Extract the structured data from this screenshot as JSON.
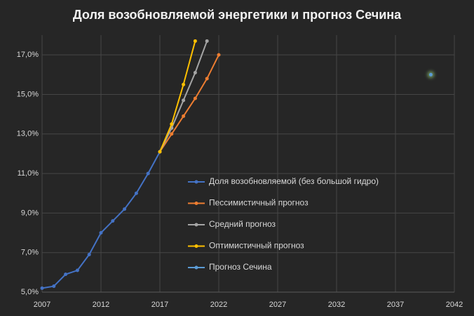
{
  "chart_data": {
    "type": "line",
    "title": "Доля возобновляемой  энергетики  и прогноз  Сечина",
    "xlim": [
      2007,
      2042
    ],
    "xticks": [
      2007,
      2012,
      2017,
      2022,
      2027,
      2032,
      2037,
      2042
    ],
    "ylim": [
      5,
      18
    ],
    "yticks": [
      {
        "value": 5,
        "label": "5,0%"
      },
      {
        "value": 7,
        "label": "7,0%"
      },
      {
        "value": 9,
        "label": "9,0%"
      },
      {
        "value": 11,
        "label": "11,0%"
      },
      {
        "value": 13,
        "label": "13,0%"
      },
      {
        "value": 15,
        "label": "15,0%"
      },
      {
        "value": 17,
        "label": "17,0%"
      }
    ],
    "grid": true,
    "legend": "center",
    "series": [
      {
        "name": "Доля возобновляемой (без большой гидро)",
        "color": "#4472c4",
        "x": [
          2007,
          2008,
          2009,
          2010,
          2011,
          2012,
          2013,
          2014,
          2015,
          2016,
          2017
        ],
        "values": [
          5.2,
          5.3,
          5.9,
          6.1,
          6.9,
          8.0,
          8.6,
          9.2,
          10.0,
          11.0,
          12.1
        ]
      },
      {
        "name": "Пессимистичный прогноз",
        "color": "#ed7d31",
        "x": [
          2017,
          2018,
          2019,
          2020,
          2021,
          2022
        ],
        "values": [
          12.1,
          13.0,
          13.9,
          14.8,
          15.8,
          17.0
        ]
      },
      {
        "name": "Средний прогноз",
        "color": "#a5a5a5",
        "x": [
          2017,
          2018,
          2019,
          2020,
          2021
        ],
        "values": [
          12.1,
          13.3,
          14.7,
          16.1,
          17.7
        ]
      },
      {
        "name": "Оптимистичный прогноз",
        "color": "#ffc000",
        "x": [
          2017,
          2018,
          2019,
          2020
        ],
        "values": [
          12.1,
          13.5,
          15.5,
          17.7
        ]
      },
      {
        "name": "Прогноз Сечина",
        "color": "#5b9bd5",
        "x": [
          2040
        ],
        "values": [
          16.0
        ]
      }
    ]
  }
}
